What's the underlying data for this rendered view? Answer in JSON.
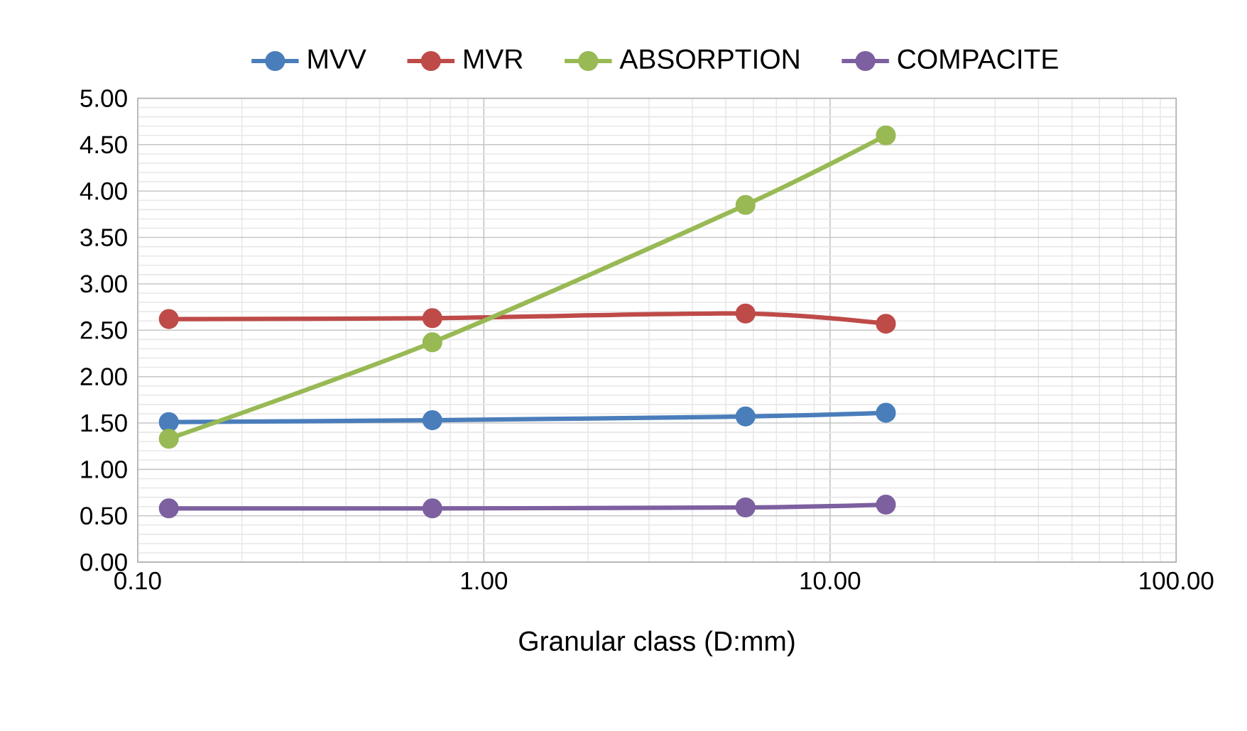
{
  "chart_data": {
    "type": "line",
    "xlabel": "Granular class (D:mm)",
    "log": "x",
    "x": [
      0.123,
      0.71,
      5.7,
      14.5
    ],
    "xlim": [
      0.1,
      100
    ],
    "xticks": [
      {
        "value": 0.1,
        "label": "0.10"
      },
      {
        "value": 1,
        "label": "1.00"
      },
      {
        "value": 10,
        "label": "10.00"
      },
      {
        "value": 100,
        "label": "100.00"
      }
    ],
    "ylim": [
      0,
      5
    ],
    "yticks": [
      {
        "value": 0,
        "label": "0.00"
      },
      {
        "value": 0.5,
        "label": "0.50"
      },
      {
        "value": 1,
        "label": "1.00"
      },
      {
        "value": 1.5,
        "label": "1.50"
      },
      {
        "value": 2,
        "label": "2.00"
      },
      {
        "value": 2.5,
        "label": "2.50"
      },
      {
        "value": 3,
        "label": "3.00"
      },
      {
        "value": 3.5,
        "label": "3.50"
      },
      {
        "value": 4,
        "label": "4.00"
      },
      {
        "value": 4.5,
        "label": "4.50"
      },
      {
        "value": 5,
        "label": "5.00"
      }
    ],
    "grid": true,
    "legend": "top",
    "marker": "circle",
    "line_style": "solid",
    "series": [
      {
        "name": "MVV",
        "color": "#4a7ebb",
        "values": [
          1.51,
          1.53,
          1.57,
          1.61
        ]
      },
      {
        "name": "MVR",
        "color": "#be4b48",
        "values": [
          2.62,
          2.63,
          2.68,
          2.57
        ]
      },
      {
        "name": "ABSORPTION",
        "color": "#98b954",
        "values": [
          1.33,
          2.37,
          3.85,
          4.6
        ]
      },
      {
        "name": "COMPACITE",
        "color": "#7d60a0",
        "values": [
          0.58,
          0.58,
          0.59,
          0.62
        ]
      }
    ]
  }
}
